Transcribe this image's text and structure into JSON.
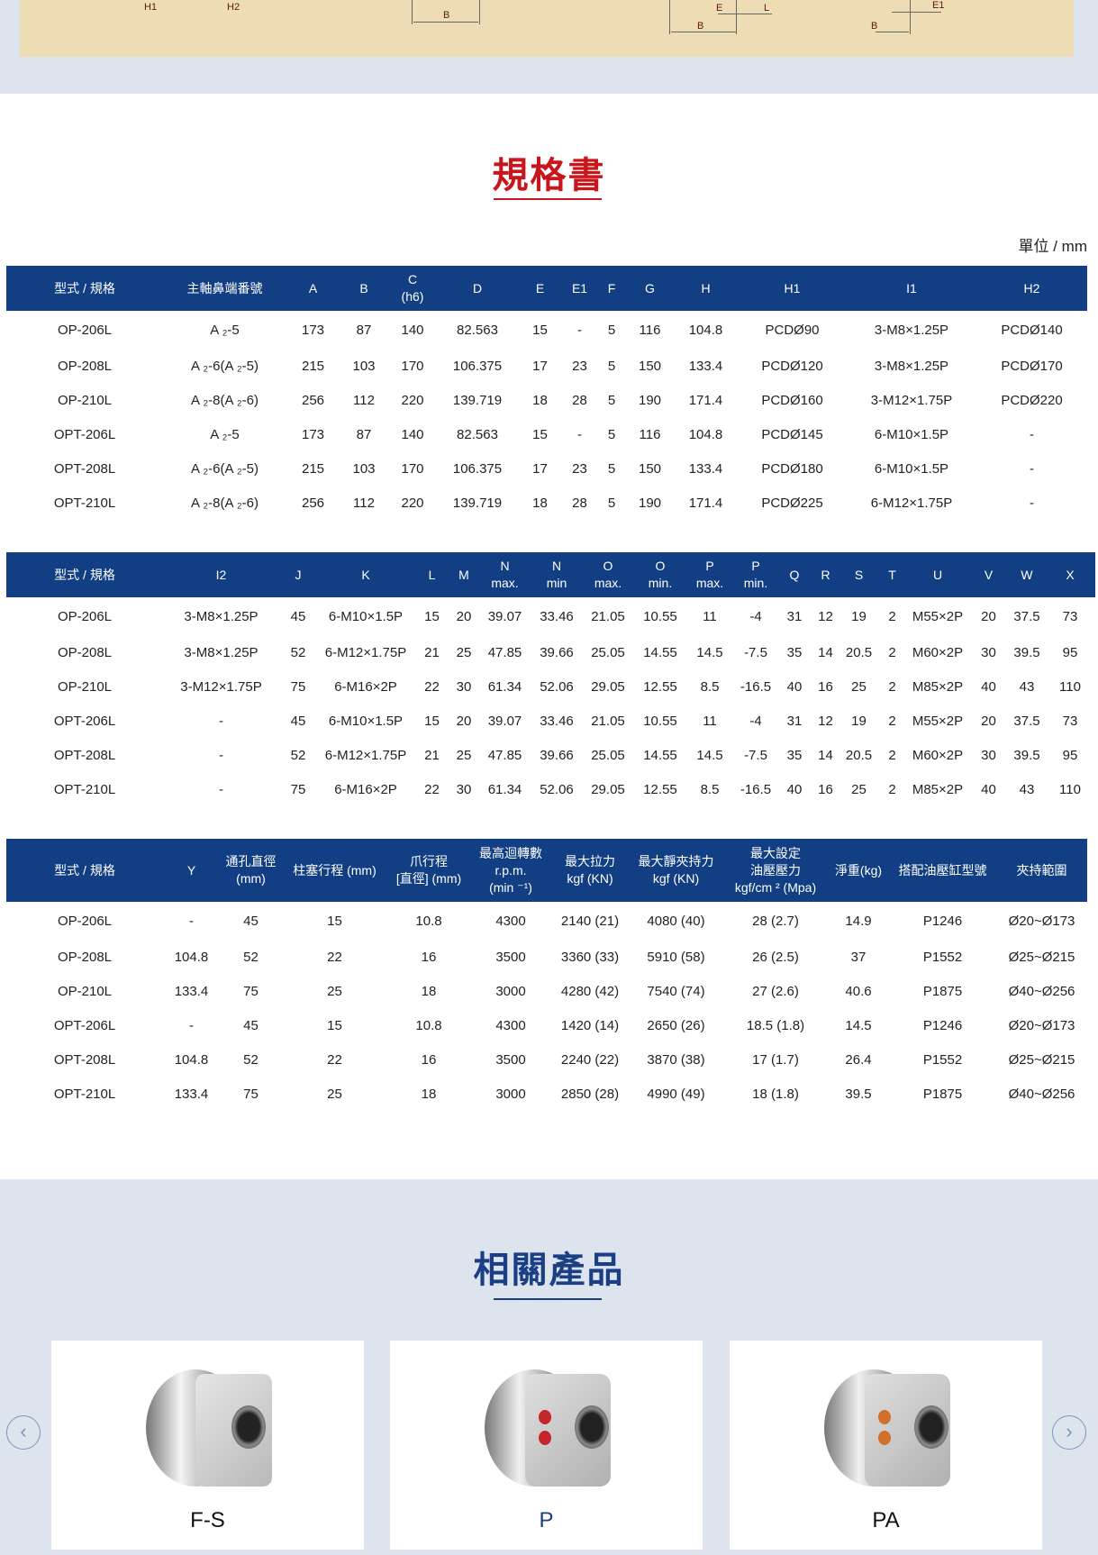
{
  "drawing": {
    "labels": [
      "H1",
      "H2",
      "B",
      "E",
      "L",
      "B",
      "B",
      "E1"
    ]
  },
  "spec": {
    "title": "規格書",
    "unit": "單位 / mm",
    "title_color": "#c8161d",
    "header_color": "#123f84"
  },
  "tables": [
    {
      "headers": [
        [
          "型式 / 規格"
        ],
        [
          "主軸鼻端番號"
        ],
        [
          "A"
        ],
        [
          "B"
        ],
        [
          "C",
          "(h6)"
        ],
        [
          "D"
        ],
        [
          "E"
        ],
        [
          "E1"
        ],
        [
          "F"
        ],
        [
          "G"
        ],
        [
          "H"
        ],
        [
          "H1"
        ],
        [
          "I1"
        ],
        [
          "H2"
        ]
      ],
      "rows": [
        [
          "OP-206L",
          "A ₂-5",
          "173",
          "87",
          "140",
          "82.563",
          "15",
          "-",
          "5",
          "116",
          "104.8",
          "PCDØ90",
          "3-M8×1.25P",
          "PCDØ140"
        ],
        [
          "OP-208L",
          "A ₂-6(A ₂-5)",
          "215",
          "103",
          "170",
          "106.375",
          "17",
          "23",
          "5",
          "150",
          "133.4",
          "PCDØ120",
          "3-M8×1.25P",
          "PCDØ170"
        ],
        [
          "OP-210L",
          "A ₂-8(A ₂-6)",
          "256",
          "112",
          "220",
          "139.719",
          "18",
          "28",
          "5",
          "190",
          "171.4",
          "PCDØ160",
          "3-M12×1.75P",
          "PCDØ220"
        ],
        [
          "OPT-206L",
          "A ₂-5",
          "173",
          "87",
          "140",
          "82.563",
          "15",
          "-",
          "5",
          "116",
          "104.8",
          "PCDØ145",
          "6-M10×1.5P",
          "-"
        ],
        [
          "OPT-208L",
          "A ₂-6(A ₂-5)",
          "215",
          "103",
          "170",
          "106.375",
          "17",
          "23",
          "5",
          "150",
          "133.4",
          "PCDØ180",
          "6-M10×1.5P",
          "-"
        ],
        [
          "OPT-210L",
          "A ₂-8(A ₂-6)",
          "256",
          "112",
          "220",
          "139.719",
          "18",
          "28",
          "5",
          "190",
          "171.4",
          "PCDØ225",
          "6-M12×1.75P",
          "-"
        ]
      ]
    },
    {
      "headers": [
        [
          "型式 / 規格"
        ],
        [
          "I2"
        ],
        [
          "J"
        ],
        [
          "K"
        ],
        [
          "L"
        ],
        [
          "M"
        ],
        [
          "N",
          "max."
        ],
        [
          "N",
          "min"
        ],
        [
          "O",
          "max."
        ],
        [
          "O",
          "min."
        ],
        [
          "P",
          "max."
        ],
        [
          "P",
          "min."
        ],
        [
          "Q"
        ],
        [
          "R"
        ],
        [
          "S"
        ],
        [
          "T"
        ],
        [
          "U"
        ],
        [
          "V"
        ],
        [
          "W"
        ],
        [
          "X"
        ]
      ],
      "rows": [
        [
          "OP-206L",
          "3-M8×1.25P",
          "45",
          "6-M10×1.5P",
          "15",
          "20",
          "39.07",
          "33.46",
          "21.05",
          "10.55",
          "11",
          "-4",
          "31",
          "12",
          "19",
          "2",
          "M55×2P",
          "20",
          "37.5",
          "73"
        ],
        [
          "OP-208L",
          "3-M8×1.25P",
          "52",
          "6-M12×1.75P",
          "21",
          "25",
          "47.85",
          "39.66",
          "25.05",
          "14.55",
          "14.5",
          "-7.5",
          "35",
          "14",
          "20.5",
          "2",
          "M60×2P",
          "30",
          "39.5",
          "95"
        ],
        [
          "OP-210L",
          "3-M12×1.75P",
          "75",
          "6-M16×2P",
          "22",
          "30",
          "61.34",
          "52.06",
          "29.05",
          "12.55",
          "8.5",
          "-16.5",
          "40",
          "16",
          "25",
          "2",
          "M85×2P",
          "40",
          "43",
          "110"
        ],
        [
          "OPT-206L",
          "-",
          "45",
          "6-M10×1.5P",
          "15",
          "20",
          "39.07",
          "33.46",
          "21.05",
          "10.55",
          "11",
          "-4",
          "31",
          "12",
          "19",
          "2",
          "M55×2P",
          "20",
          "37.5",
          "73"
        ],
        [
          "OPT-208L",
          "-",
          "52",
          "6-M12×1.75P",
          "21",
          "25",
          "47.85",
          "39.66",
          "25.05",
          "14.55",
          "14.5",
          "-7.5",
          "35",
          "14",
          "20.5",
          "2",
          "M60×2P",
          "30",
          "39.5",
          "95"
        ],
        [
          "OPT-210L",
          "-",
          "75",
          "6-M16×2P",
          "22",
          "30",
          "61.34",
          "52.06",
          "29.05",
          "12.55",
          "8.5",
          "-16.5",
          "40",
          "16",
          "25",
          "2",
          "M85×2P",
          "40",
          "43",
          "110"
        ]
      ]
    },
    {
      "headers": [
        [
          "型式 / 規格"
        ],
        [
          "Y"
        ],
        [
          "通孔直徑",
          "(mm)"
        ],
        [
          "柱塞行程 (mm)"
        ],
        [
          "爪行程",
          "[直徑] (mm)"
        ],
        [
          "最高迴轉數",
          "r.p.m.",
          "(min ⁻¹)"
        ],
        [
          "最大拉力",
          "kgf (KN)"
        ],
        [
          "最大靜夾持力",
          "kgf (KN)"
        ],
        [
          "最大設定",
          "油壓壓力",
          "kgf/cm ² (Mpa)"
        ],
        [
          "淨重(kg)"
        ],
        [
          "搭配油壓缸型號"
        ],
        [
          "夾持範圍"
        ]
      ],
      "rows": [
        [
          "OP-206L",
          "-",
          "45",
          "15",
          "10.8",
          "4300",
          "2140 (21)",
          "4080 (40)",
          "28 (2.7)",
          "14.9",
          "P1246",
          "Ø20~Ø173"
        ],
        [
          "OP-208L",
          "104.8",
          "52",
          "22",
          "16",
          "3500",
          "3360 (33)",
          "5910 (58)",
          "26 (2.5)",
          "37",
          "P1552",
          "Ø25~Ø215"
        ],
        [
          "OP-210L",
          "133.4",
          "75",
          "25",
          "18",
          "3000",
          "4280 (42)",
          "7540 (74)",
          "27 (2.6)",
          "40.6",
          "P1875",
          "Ø40~Ø256"
        ],
        [
          "OPT-206L",
          "-",
          "45",
          "15",
          "10.8",
          "4300",
          "1420 (14)",
          "2650 (26)",
          "18.5 (1.8)",
          "14.5",
          "P1246",
          "Ø20~Ø173"
        ],
        [
          "OPT-208L",
          "104.8",
          "52",
          "22",
          "16",
          "3500",
          "2240 (22)",
          "3870 (38)",
          "17 (1.7)",
          "26.4",
          "P1552",
          "Ø25~Ø215"
        ],
        [
          "OPT-210L",
          "133.4",
          "75",
          "25",
          "18",
          "3000",
          "2850 (28)",
          "4990 (49)",
          "18 (1.8)",
          "39.5",
          "P1875",
          "Ø40~Ø256"
        ]
      ]
    }
  ],
  "related": {
    "title": "相關產品",
    "title_color": "#1a3f85",
    "prev_icon": "chevron-left-icon",
    "next_icon": "chevron-right-icon",
    "products": [
      {
        "name": "F-S"
      },
      {
        "name": "P",
        "active": true
      },
      {
        "name": "PA"
      }
    ]
  }
}
